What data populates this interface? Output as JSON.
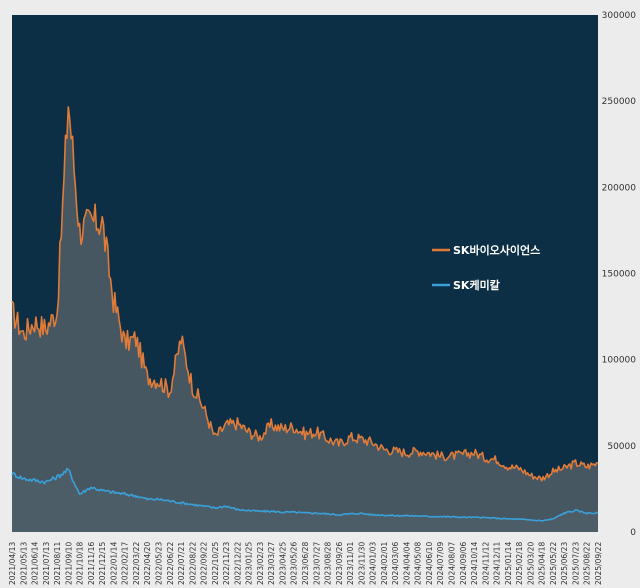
{
  "chart_data": {
    "type": "area",
    "title": "",
    "xlabel": "",
    "ylabel": "",
    "ylim": [
      0,
      300000
    ],
    "y_ticks": [
      0,
      50000,
      100000,
      150000,
      200000,
      250000,
      300000
    ],
    "y_axis_side": "right",
    "grid": false,
    "legend_position": "center-right",
    "background_color": "#0d2f45",
    "x": [
      "2021/04/13",
      "2021/05/13",
      "2021/06/14",
      "2021/07/13",
      "2021/08/11",
      "2021/09/10",
      "2021/10/18",
      "2021/11/16",
      "2021/12/15",
      "2022/01/14",
      "2022/02/17",
      "2022/03/22",
      "2022/04/20",
      "2022/05/23",
      "2022/06/22",
      "2022/07/21",
      "2022/08/22",
      "2022/09/22",
      "2022/10/25",
      "2022/11/23",
      "2022/12/22",
      "2023/01/25",
      "2023/02/23",
      "2023/03/27",
      "2023/04/25",
      "2023/05/26",
      "2023/06/28",
      "2023/07/27",
      "2023/08/28",
      "2023/09/26",
      "2023/11/01",
      "2023/11/30",
      "2024/01/03",
      "2024/02/01",
      "2024/03/06",
      "2024/04/04",
      "2024/05/08",
      "2024/06/10",
      "2024/07/09",
      "2024/08/07",
      "2024/09/06",
      "2024/10/14",
      "2024/11/12",
      "2024/12/11",
      "2025/01/14",
      "2025/02/18",
      "2025/03/20",
      "2025/04/18",
      "2025/05/22",
      "2025/06/23",
      "2025/07/23",
      "2025/08/22",
      "2025/09/22"
    ],
    "series": [
      {
        "name": "SK바이오사이언스",
        "color": "#e07b39",
        "values": [
          128000,
          115000,
          122000,
          118000,
          128000,
          250000,
          175000,
          180000,
          180000,
          135000,
          110000,
          112000,
          90000,
          88000,
          82000,
          112000,
          85000,
          72000,
          55000,
          62000,
          63000,
          58000,
          55000,
          62000,
          60000,
          61000,
          57000,
          58000,
          54000,
          51000,
          55000,
          54000,
          52000,
          48000,
          47000,
          46000,
          47000,
          46000,
          44000,
          44000,
          45000,
          46000,
          43000,
          42000,
          38000,
          37000,
          33000,
          31000,
          35000,
          37000,
          40000,
          38000,
          40000
        ]
      },
      {
        "name": "SK케미칼",
        "color": "#3aa0d8",
        "values": [
          34000,
          31000,
          30000,
          29000,
          32000,
          36000,
          22000,
          26000,
          24000,
          23000,
          22000,
          21000,
          19000,
          19000,
          18000,
          17000,
          16000,
          15000,
          14000,
          15000,
          13000,
          12500,
          12000,
          12000,
          11500,
          11500,
          11000,
          11000,
          10500,
          10000,
          10500,
          10800,
          10000,
          9800,
          9500,
          9500,
          9300,
          9000,
          9000,
          8800,
          8600,
          8500,
          8300,
          8000,
          7600,
          7400,
          7000,
          6500,
          7500,
          11000,
          12500,
          11000,
          11000
        ]
      }
    ]
  }
}
